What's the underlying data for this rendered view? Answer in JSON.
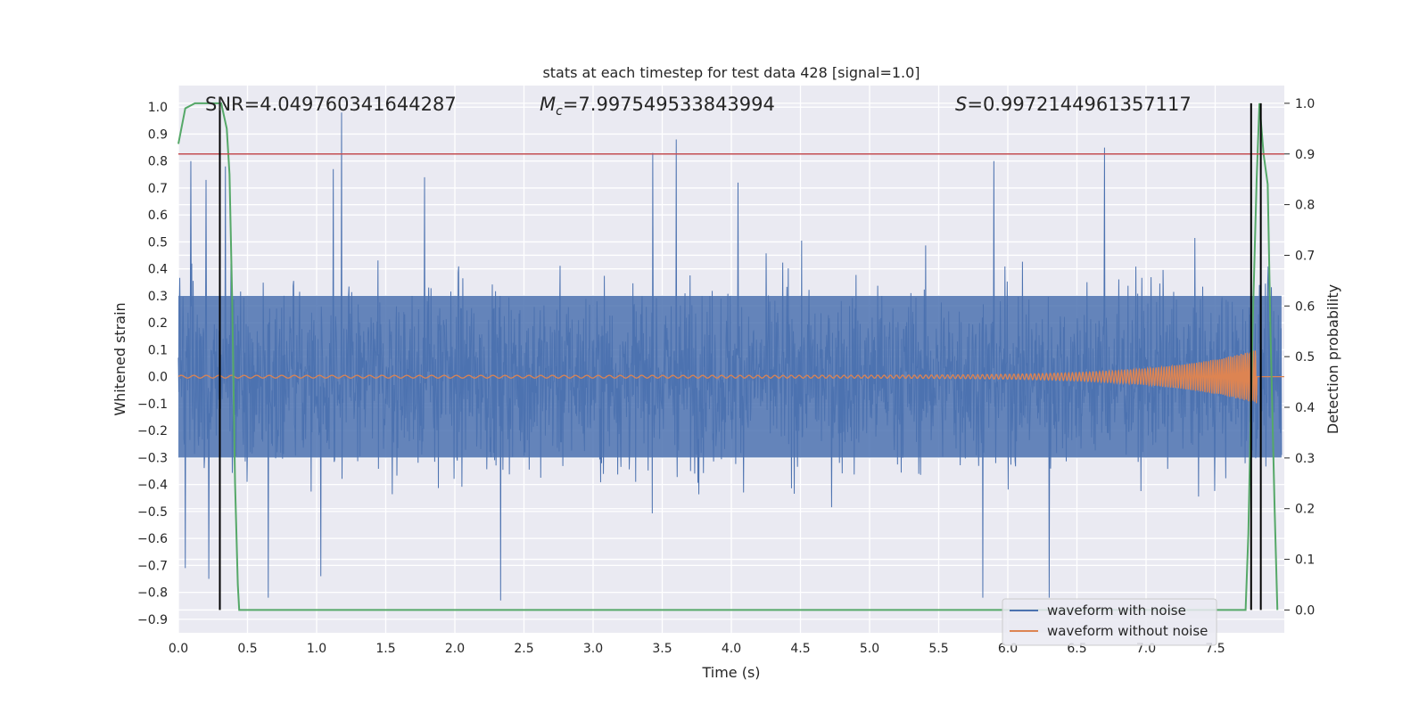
{
  "chart_data": {
    "type": "line",
    "title": "stats at each timestep for test data 428 [signal=1.0]",
    "xlabel": "Time (s)",
    "ylabel": "Whitened strain",
    "ylabel_right": "Detection probability",
    "xlim": [
      0.0,
      8.0
    ],
    "ylim": [
      -0.95,
      1.08
    ],
    "ylim_right": [
      -0.045,
      1.035
    ],
    "x_ticks": [
      "0.0",
      "0.5",
      "1.0",
      "1.5",
      "2.0",
      "2.5",
      "3.0",
      "3.5",
      "4.0",
      "4.5",
      "5.0",
      "5.5",
      "6.0",
      "6.5",
      "7.0",
      "7.5"
    ],
    "y_ticks": [
      "-0.9",
      "-0.8",
      "-0.7",
      "-0.6",
      "-0.5",
      "-0.4",
      "-0.3",
      "-0.2",
      "-0.1",
      "0.0",
      "0.1",
      "0.2",
      "0.3",
      "0.4",
      "0.5",
      "0.6",
      "0.7",
      "0.8",
      "0.9",
      "1.0"
    ],
    "y_ticks_right": [
      "0.0",
      "0.1",
      "0.2",
      "0.3",
      "0.4",
      "0.5",
      "0.6",
      "0.7",
      "0.8",
      "0.9",
      "1.0"
    ],
    "grid": true,
    "legend_position": "bottom-right",
    "annotations": {
      "snr": "SNR=4.049760341644287",
      "mc_symbol": "M",
      "mc_sub": "c",
      "mc_value": "=7.997549533843994",
      "s_symbol": "S",
      "s_value": "=0.9972144961357117"
    },
    "colors": {
      "plot_bg": "#eaeaf2",
      "noise": "#4c72b0",
      "clean": "#dd8452",
      "prob": "#55a868",
      "threshold": "#c44e52",
      "marker": "#000000"
    },
    "series": [
      {
        "name": "waveform with noise",
        "role": "noise",
        "description": "whitened strain with noise",
        "envelope_typical": 0.5,
        "spikes": [
          {
            "x": 0.05,
            "y": 0.55
          },
          {
            "x": 0.09,
            "y": 0.8
          },
          {
            "x": 0.2,
            "y": 0.73
          },
          {
            "x": 0.34,
            "y": 0.78
          },
          {
            "x": 1.18,
            "y": 1.0
          },
          {
            "x": 1.12,
            "y": 0.77
          },
          {
            "x": 1.78,
            "y": 0.74
          },
          {
            "x": 3.43,
            "y": 0.83
          },
          {
            "x": 3.6,
            "y": 0.88
          },
          {
            "x": 4.05,
            "y": 0.72
          },
          {
            "x": 5.9,
            "y": 0.8
          },
          {
            "x": 6.7,
            "y": 0.85
          },
          {
            "x": 0.65,
            "y": -0.82
          },
          {
            "x": 1.03,
            "y": -0.74
          },
          {
            "x": 2.33,
            "y": -0.83
          },
          {
            "x": 5.82,
            "y": -0.82
          },
          {
            "x": 6.3,
            "y": -0.82
          },
          {
            "x": 0.22,
            "y": -0.75
          },
          {
            "x": 0.05,
            "y": -0.71
          }
        ]
      },
      {
        "name": "waveform without noise",
        "role": "clean",
        "description": "chirp",
        "amp_start": 0.005,
        "amp_end": 0.1,
        "freq_start": 11,
        "freq_end": 70,
        "merger_time": 7.8
      },
      {
        "name": "detection probability",
        "role": "prob",
        "points": [
          [
            0.0,
            0.92
          ],
          [
            0.05,
            0.99
          ],
          [
            0.12,
            1.0
          ],
          [
            0.28,
            1.0
          ],
          [
            0.31,
            1.0
          ],
          [
            0.35,
            0.95
          ],
          [
            0.37,
            0.86
          ],
          [
            0.39,
            0.6
          ],
          [
            0.41,
            0.25
          ],
          [
            0.43,
            0.05
          ],
          [
            0.44,
            0.0
          ],
          [
            7.72,
            0.0
          ],
          [
            7.74,
            0.15
          ],
          [
            7.77,
            0.55
          ],
          [
            7.8,
            0.85
          ],
          [
            7.82,
            1.0
          ],
          [
            7.85,
            0.9
          ],
          [
            7.88,
            0.84
          ],
          [
            7.9,
            0.55
          ],
          [
            7.93,
            0.2
          ],
          [
            7.95,
            0.0
          ]
        ]
      }
    ],
    "threshold_line_right": 0.9,
    "vertical_markers_x": [
      0.3,
      7.76,
      7.83
    ],
    "marker_range_right": [
      0.0,
      1.0
    ]
  }
}
